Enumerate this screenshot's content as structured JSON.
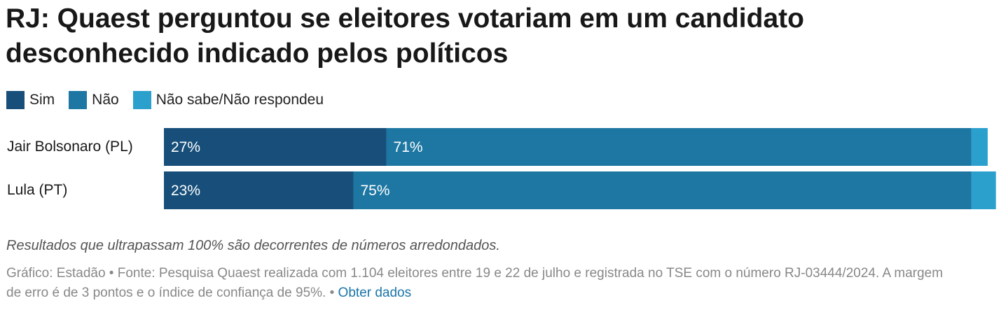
{
  "title": "RJ: Quaest perguntou se eleitores votariam em um candidato desconhecido indicado pelos políticos",
  "note": "Resultados que ultrapassam 100% são decorrentes de números arredondados.",
  "footer": {
    "text": "Gráfico: Estadão • Fonte: Pesquisa Quaest realizada com 1.104 eleitores entre 19 e 22 de julho e registrada no TSE com o número RJ-03444/2024. A margem de erro é de 3 pontos e o índice de confiança de 95%. •",
    "link": "Obter dados"
  },
  "chart_data": {
    "type": "bar",
    "stacked": true,
    "orientation": "horizontal",
    "categories": [
      "Jair Bolsonaro (PL)",
      "Lula (PT)"
    ],
    "series": [
      {
        "name": "Sim",
        "color": "#174f7a",
        "values": [
          27,
          23
        ],
        "labels": [
          "27%",
          "23%"
        ]
      },
      {
        "name": "Não",
        "color": "#1d77a2",
        "values": [
          71,
          75
        ],
        "labels": [
          "71%",
          "75%"
        ]
      },
      {
        "name": "Não sabe/Não respondeu",
        "color": "#2ba0cc",
        "values": [
          2,
          3
        ],
        "labels": [
          "",
          ""
        ]
      }
    ],
    "xlim": [
      0,
      100
    ],
    "legend": "top-left"
  }
}
